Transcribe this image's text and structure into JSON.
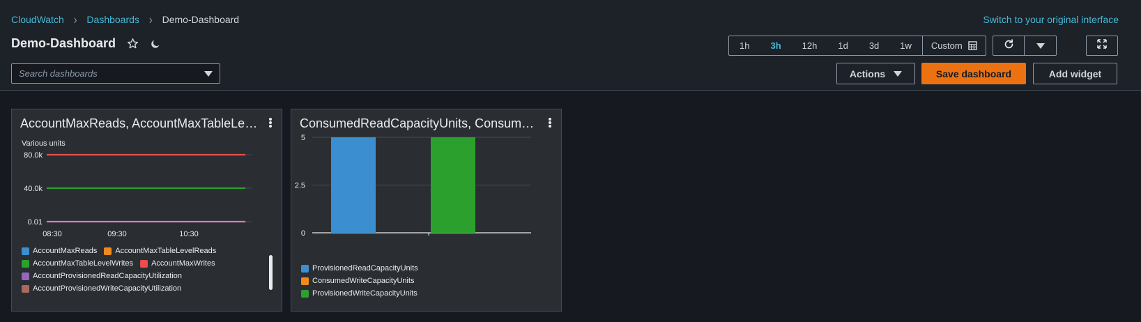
{
  "breadcrumb": {
    "items": [
      "CloudWatch",
      "Dashboards"
    ],
    "current": "Demo-Dashboard"
  },
  "switch_link": "Switch to your original interface",
  "dashboard": {
    "title": "Demo-Dashboard"
  },
  "search": {
    "placeholder": "Search dashboards",
    "value": ""
  },
  "time_range": {
    "options": [
      "1h",
      "3h",
      "12h",
      "1d",
      "3d",
      "1w"
    ],
    "active": "3h",
    "custom_label": "Custom"
  },
  "buttons": {
    "actions": "Actions",
    "save": "Save dashboard",
    "add_widget": "Add widget"
  },
  "colors": {
    "accent_link": "#44b9d6",
    "primary_button": "#ec7211",
    "blue": "#3b8ed0",
    "orange": "#f28a1b",
    "green": "#2ca02c",
    "red": "#e84e4e",
    "purple": "#9467bd",
    "brown": "#a86a5e",
    "pink": "#e377c2"
  },
  "widgets": [
    {
      "title": "AccountMaxReads, AccountMaxTableLevelReads, AccountMaxWrites…",
      "units_label": "Various units",
      "legend": [
        {
          "name": "AccountMaxReads",
          "color": "#3b8ed0"
        },
        {
          "name": "AccountMaxTableLevelReads",
          "color": "#f28a1b"
        },
        {
          "name": "AccountMaxTableLevelWrites",
          "color": "#2ca02c"
        },
        {
          "name": "AccountMaxWrites",
          "color": "#e84e4e"
        },
        {
          "name": "AccountProvisionedReadCapacityUtilization",
          "color": "#9467bd"
        },
        {
          "name": "AccountProvisionedWriteCapacityUtilization",
          "color": "#a86a5e"
        }
      ]
    },
    {
      "title": "ConsumedReadCapacityUnits, ConsumedWriteCapacityUnits…",
      "legend": [
        {
          "name": "ProvisionedReadCapacityUnits",
          "color": "#3b8ed0"
        },
        {
          "name": "ConsumedWriteCapacityUnits",
          "color": "#f28a1b"
        },
        {
          "name": "ProvisionedWriteCapacityUnits",
          "color": "#2ca02c"
        }
      ]
    }
  ],
  "chart_data": [
    {
      "type": "line",
      "ylabel": "Various units",
      "y_ticks": [
        "0.01",
        "40.0k",
        "80.0k"
      ],
      "x_ticks": [
        "08:30",
        "09:30",
        "10:30"
      ],
      "grid": true,
      "series": [
        {
          "name": "AccountMaxWrites",
          "color": "#e84e4e",
          "values": [
            80000,
            80000
          ]
        },
        {
          "name": "AccountMaxTableLevelWrites",
          "color": "#2ca02c",
          "values": [
            40000,
            40000
          ]
        },
        {
          "name": "AccountProvisionedReadCapacityUtilization",
          "color": "#e377c2",
          "values": [
            0.01,
            0.01
          ]
        }
      ]
    },
    {
      "type": "bar",
      "y_ticks": [
        "0",
        "2.5",
        "5"
      ],
      "ylim": [
        0,
        5
      ],
      "grid": true,
      "series": [
        {
          "name": "ProvisionedReadCapacityUnits",
          "color": "#3b8ed0",
          "value": 5
        },
        {
          "name": "ProvisionedWriteCapacityUnits",
          "color": "#2ca02c",
          "value": 5
        }
      ]
    }
  ]
}
